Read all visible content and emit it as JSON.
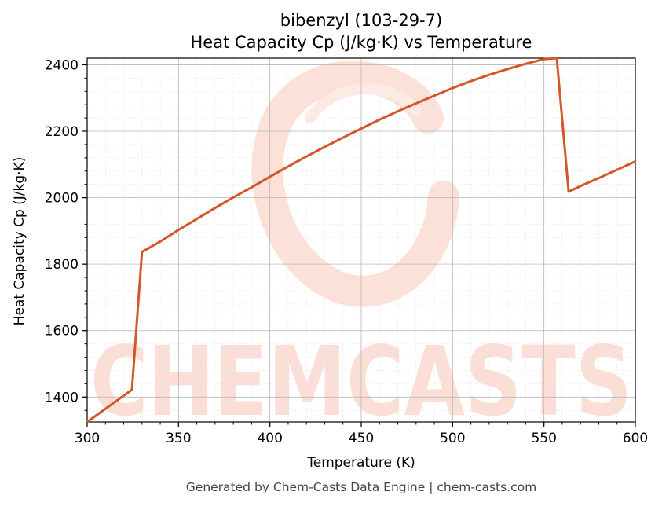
{
  "chart_data": {
    "type": "line",
    "title_line1": "bibenzyl (103-29-7)",
    "title_line2": "Heat Capacity Cp (J/kg·K) vs Temperature",
    "xlabel": "Temperature (K)",
    "ylabel": "Heat Capacity Cp (J/kg·K)",
    "xlim": [
      300,
      600
    ],
    "ylim": [
      1325,
      2420
    ],
    "x_ticks": [
      300,
      350,
      400,
      450,
      500,
      550,
      600
    ],
    "y_ticks": [
      1400,
      1600,
      1800,
      2000,
      2200,
      2400
    ],
    "grid": true,
    "series": [
      {
        "color": "#d4572a",
        "x": [
          300,
          324.5,
          330,
          340,
          350,
          360,
          370,
          380,
          390,
          400,
          410,
          420,
          430,
          440,
          450,
          460,
          470,
          480,
          490,
          500,
          510,
          520,
          530,
          540,
          550,
          557,
          563.5,
          570,
          580,
          590,
          600
        ],
        "y": [
          1325,
          1422,
          1837,
          1868,
          1903,
          1936,
          1969,
          2001,
          2031,
          2063,
          2094,
          2124,
          2153,
          2181,
          2208,
          2235,
          2260,
          2284,
          2307,
          2330,
          2351,
          2370,
          2387,
          2403,
          2417,
          2420,
          2018,
          2035,
          2059,
          2084,
          2109
        ]
      }
    ]
  },
  "watermark": {
    "text": "CHEMCASTS",
    "color": "#fbd7cc"
  },
  "footer": "Generated by Chem-Casts Data Engine | chem-casts.com"
}
